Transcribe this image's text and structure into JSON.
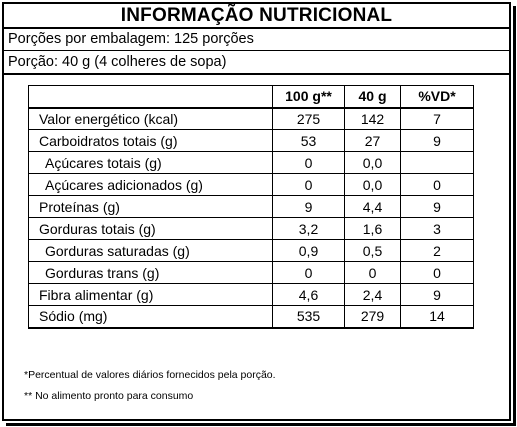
{
  "title": "INFORMAÇÃO NUTRICIONAL",
  "servings_per_package": "Porções por embalagem: 125 porções",
  "serving_size": "Porção: 40 g (4 colheres de sopa)",
  "table": {
    "headers": [
      "",
      "100 g**",
      "40 g",
      "%VD*"
    ],
    "rows": [
      {
        "name": "Valor energético (kcal)",
        "per100": "275",
        "per40": "142",
        "vd": "7"
      },
      {
        "name": "Carboidratos totais (g)",
        "per100": "53",
        "per40": "27",
        "vd": "9"
      },
      {
        "name": "Açúcares totais (g)",
        "per100": "0",
        "per40": "0,0",
        "vd": ""
      },
      {
        "name": "Açúcares adicionados (g)",
        "per100": "0",
        "per40": "0,0",
        "vd": "0"
      },
      {
        "name": "Proteínas (g)",
        "per100": "9",
        "per40": "4,4",
        "vd": "9"
      },
      {
        "name": "Gorduras totais (g)",
        "per100": "3,2",
        "per40": "1,6",
        "vd": "3"
      },
      {
        "name": "Gorduras saturadas (g)",
        "per100": "0,9",
        "per40": "0,5",
        "vd": "2"
      },
      {
        "name": "Gorduras trans (g)",
        "per100": "0",
        "per40": "0",
        "vd": "0"
      },
      {
        "name": "Fibra alimentar (g)",
        "per100": "4,6",
        "per40": "2,4",
        "vd": "9"
      },
      {
        "name": "Sódio (mg)",
        "per100": "535",
        "per40": "279",
        "vd": "14"
      }
    ]
  },
  "footnotes": [
    "*Percentual de valores diários fornecidos pela porção.",
    "** No alimento pronto para consumo"
  ]
}
